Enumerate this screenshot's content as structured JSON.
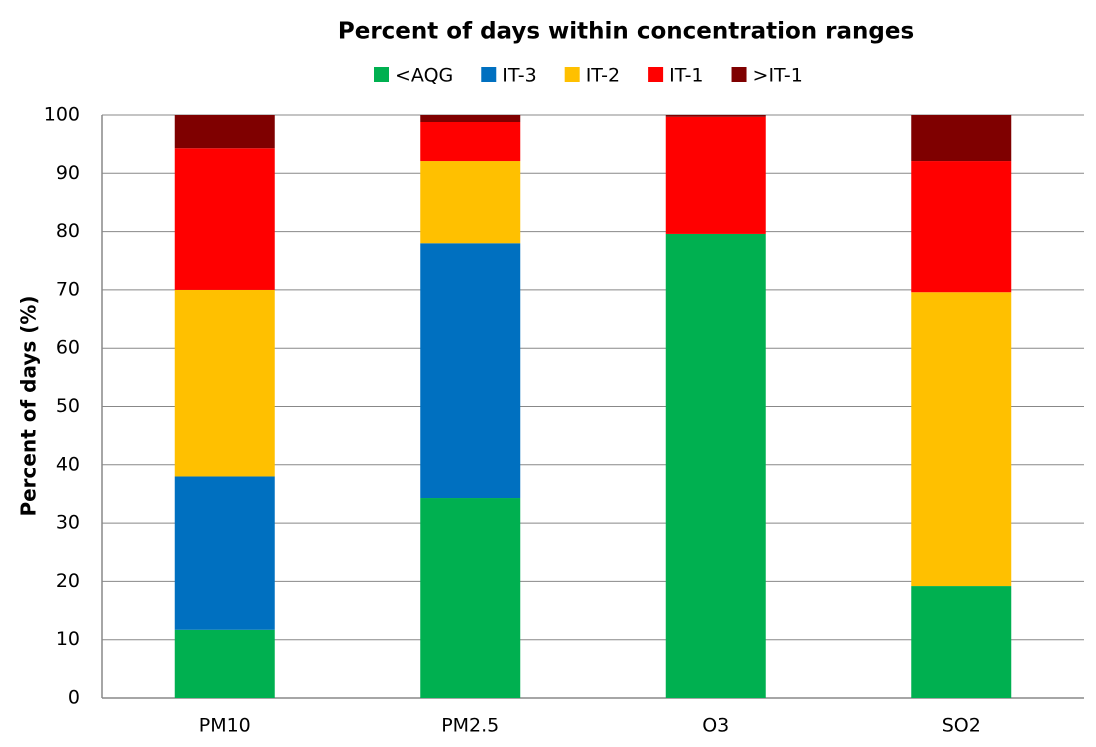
{
  "chart_data": {
    "type": "stacked_bar",
    "title": "Percent of days within concentration ranges",
    "y_label": "Percent of days (%)",
    "categories": [
      "PM10",
      "PM2.5",
      "O3",
      "SO2"
    ],
    "series": [
      {
        "name": "<AQG",
        "color": "#00b050",
        "values": [
          11.7,
          34.3,
          79.6,
          19.2
        ]
      },
      {
        "name": "IT-3",
        "color": "#0070c0",
        "values": [
          26.3,
          43.7,
          0,
          0
        ]
      },
      {
        "name": "IT-2",
        "color": "#ffc000",
        "values": [
          32,
          14.1,
          0,
          50.4
        ]
      },
      {
        "name": "IT-1",
        "color": "#ff0000",
        "values": [
          24.3,
          6.7,
          20.1,
          22.5
        ]
      },
      {
        "name": ">IT-1",
        "color": "#7f0000",
        "values": [
          5.7,
          1.2,
          0.3,
          7.9
        ]
      }
    ],
    "ylim": [
      0,
      100
    ],
    "yticks": [
      0,
      10,
      20,
      30,
      40,
      50,
      60,
      70,
      80,
      90,
      100
    ],
    "grid": true,
    "legend": "top"
  }
}
